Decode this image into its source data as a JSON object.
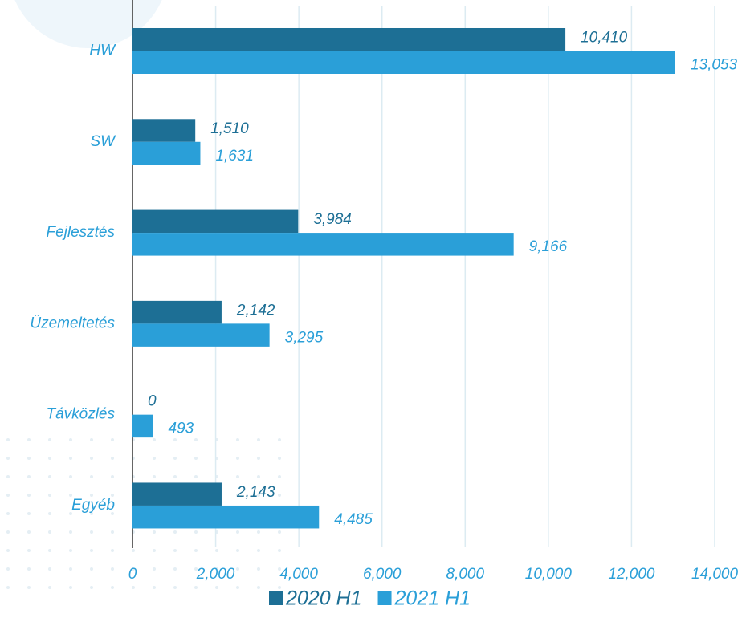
{
  "chart_data": {
    "type": "bar",
    "orientation": "horizontal",
    "categories": [
      "HW",
      "SW",
      "Fejlesztés",
      "Üzemeltetés",
      "Távközlés",
      "Egyéb"
    ],
    "series": [
      {
        "name": "2020 H1",
        "color": "#1d6f95",
        "values": [
          10410,
          1510,
          3984,
          2142,
          0,
          2143
        ],
        "value_labels": [
          "10,410",
          "1,510",
          "3,984",
          "2,142",
          "0",
          "2,143"
        ]
      },
      {
        "name": "2021 H1",
        "color": "#2a9fd8",
        "values": [
          13053,
          1631,
          9166,
          3295,
          493,
          4485
        ],
        "value_labels": [
          "13,053",
          "1,631",
          "9,166",
          "3,295",
          "493",
          "4,485"
        ]
      }
    ],
    "xlim": [
      0,
      14000
    ],
    "xticks": [
      0,
      {
        "value": 2000,
        "label": "2,000"
      },
      {
        "value": 4000,
        "label": "4,000"
      },
      {
        "value": 6000,
        "label": "6,000"
      },
      {
        "value": 8000,
        "label": "8,000"
      },
      {
        "value": 10000,
        "label": "10,000"
      },
      {
        "value": 12000,
        "label": "12,000"
      },
      {
        "value": 14000,
        "label": "14,000"
      }
    ],
    "grid": true,
    "legend": "bottom"
  }
}
